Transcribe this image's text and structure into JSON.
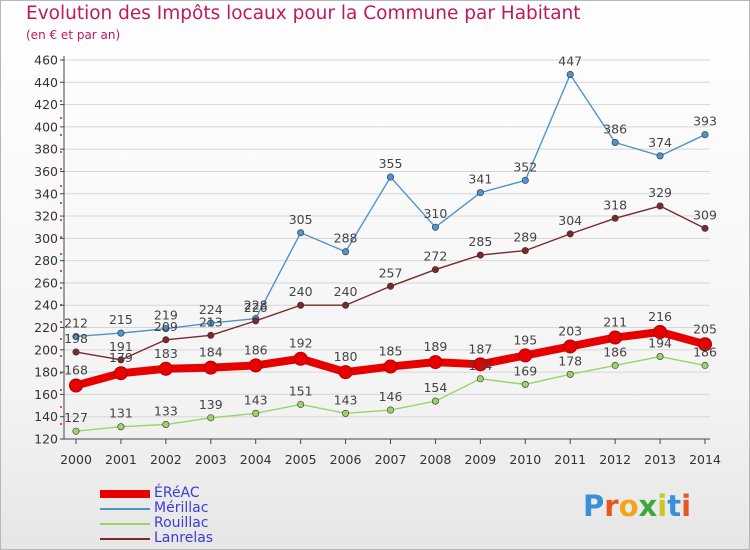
{
  "title": "Evolution des Impôts locaux pour la Commune par Habitant",
  "subtitle": "(en € et par an)",
  "logo": {
    "letters": [
      "P",
      "r",
      "o",
      "x",
      "i",
      "t",
      "i"
    ],
    "colors": [
      "#3a8fd9",
      "#e8551e",
      "#f2a51a",
      "#3aa83a",
      "#c8c81e",
      "#3a8fd9",
      "#e8551e"
    ]
  },
  "chart_data": {
    "type": "line",
    "title": "Evolution des Impôts locaux pour la Commune par Habitant",
    "subtitle": "(en € et par an)",
    "xlabel": "",
    "ylabel": "",
    "x": [
      2000,
      2001,
      2002,
      2003,
      2004,
      2005,
      2006,
      2007,
      2008,
      2009,
      2010,
      2011,
      2012,
      2013,
      2014
    ],
    "ylim": [
      120,
      460
    ],
    "yticks": [
      120,
      140,
      160,
      180,
      200,
      220,
      240,
      260,
      280,
      300,
      320,
      340,
      360,
      380,
      400,
      420,
      440,
      460
    ],
    "grid": "horizontal",
    "legend": "bottom-left",
    "series": [
      {
        "name": "ÉRéAC",
        "values": [
          168,
          179,
          183,
          184,
          186,
          192,
          180,
          185,
          189,
          187,
          195,
          203,
          211,
          216,
          205
        ],
        "color": "#e60000",
        "text_color": "#3b3bd8",
        "thick": true
      },
      {
        "name": "Mérillac",
        "values": [
          212,
          215,
          219,
          224,
          228,
          305,
          288,
          355,
          310,
          341,
          352,
          447,
          386,
          374,
          393
        ],
        "color": "#4f93cf",
        "text_color": "#3b3bd8"
      },
      {
        "name": "Rouillac",
        "values": [
          127,
          131,
          133,
          139,
          143,
          151,
          143,
          146,
          154,
          174,
          169,
          178,
          186,
          194,
          186
        ],
        "color": "#9ad36a",
        "text_color": "#3b3bd8"
      },
      {
        "name": "Lanrelas",
        "values": [
          198,
          191,
          209,
          213,
          226,
          240,
          240,
          257,
          272,
          285,
          289,
          304,
          318,
          329,
          309
        ],
        "color": "#7a2a2a",
        "text_color": "#3b3bd8"
      }
    ]
  }
}
